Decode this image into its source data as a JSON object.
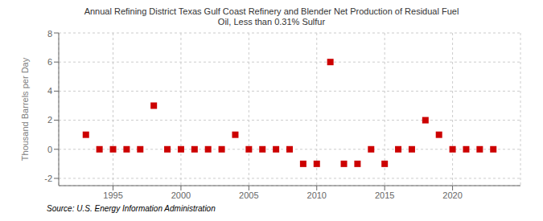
{
  "chart_data": {
    "type": "scatter",
    "title": "Annual Refining District Texas Gulf Coast Refinery and Blender Net Production of Residual Fuel\nOil, Less than 0.31% Sulfur",
    "ylabel": "Thousand Barrels per Day",
    "source": "Source: U.S. Energy Information Administration",
    "x": [
      1993,
      1994,
      1995,
      1996,
      1997,
      1998,
      1999,
      2000,
      2001,
      2002,
      2003,
      2004,
      2005,
      2006,
      2007,
      2008,
      2009,
      2010,
      2011,
      2012,
      2013,
      2014,
      2015,
      2016,
      2017,
      2018,
      2019,
      2020,
      2021,
      2022,
      2023
    ],
    "values": [
      1,
      0,
      0,
      0,
      0,
      3,
      0,
      0,
      0,
      0,
      0,
      1,
      0,
      0,
      0,
      0,
      -1,
      -1,
      6,
      -1,
      -1,
      0,
      -1,
      0,
      0,
      2,
      1,
      0,
      0,
      0,
      0
    ],
    "xlim": [
      1991,
      2025
    ],
    "ylim": [
      -2.5,
      8
    ],
    "xticks": [
      1995,
      2000,
      2005,
      2010,
      2015,
      2020
    ],
    "yticks": [
      -2,
      0,
      2,
      4,
      6,
      8
    ],
    "color": "#cc0000",
    "marker": "square",
    "grid": true
  }
}
